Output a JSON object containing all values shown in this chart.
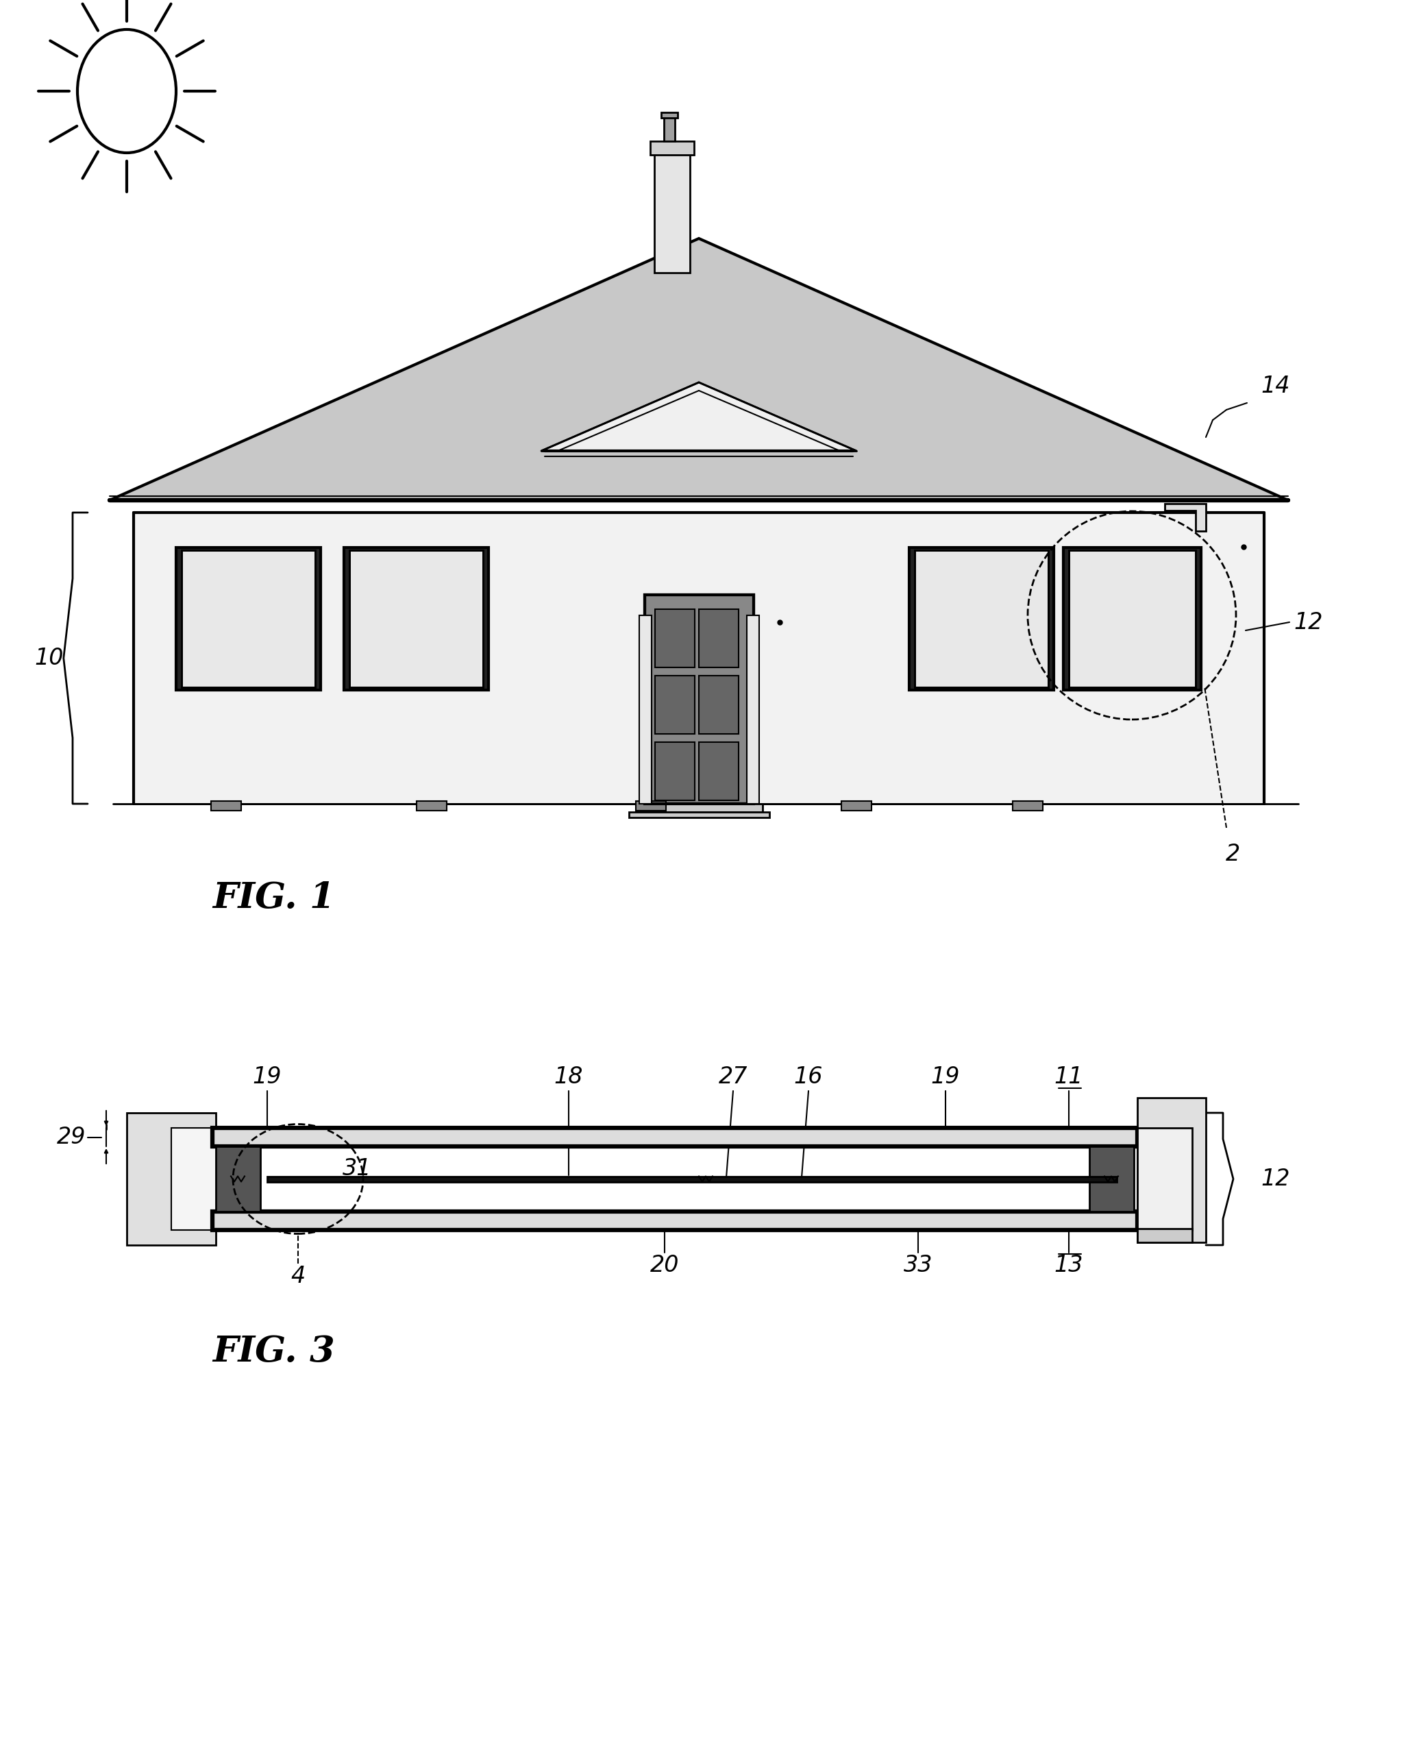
{
  "bg_color": "#ffffff",
  "line_color": "#000000",
  "fig1_label": "FIG. 1",
  "fig3_label": "FIG. 3",
  "label_fontsize": 38,
  "annotation_fontsize": 24,
  "roof_color": "#c8c8c8",
  "wall_color": "#f2f2f2",
  "window_color": "#e8e8e8",
  "door_color": "#888888",
  "dark_color": "#333333"
}
